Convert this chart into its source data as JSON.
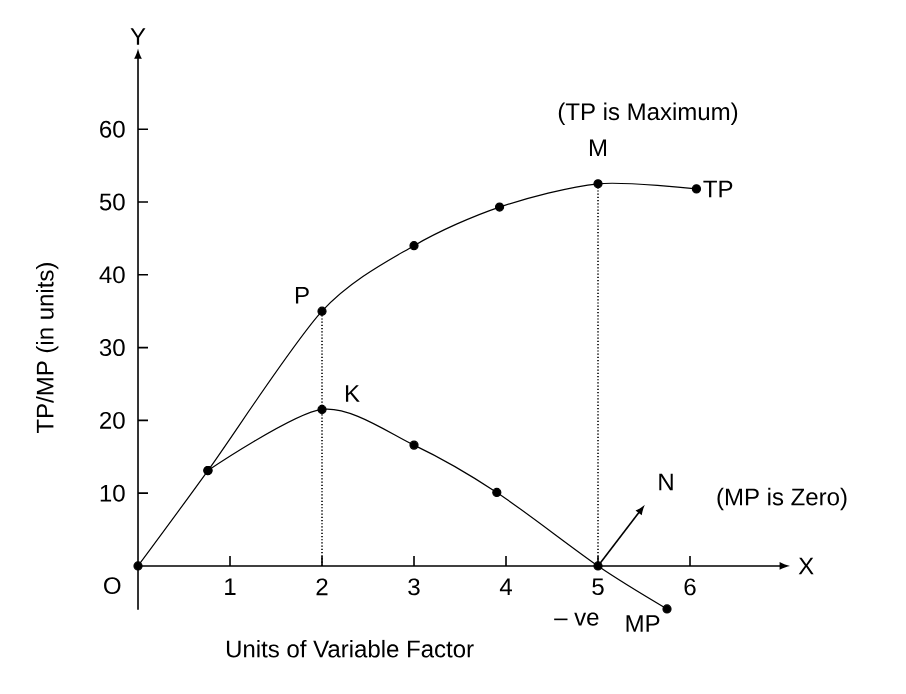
{
  "chart_data": {
    "type": "line",
    "xlabel": "Units of Variable Factor",
    "ylabel": "TP/MP (in units)",
    "xlim": [
      0,
      7
    ],
    "ylim": [
      -6,
      70
    ],
    "xticks": [
      1,
      2,
      3,
      4,
      5,
      6
    ],
    "yticks": [
      10,
      20,
      30,
      40,
      50,
      60
    ],
    "marker": "circle",
    "series": [
      {
        "name": "TP",
        "color": "#000000",
        "x": [
          0,
          0.76,
          2,
          3,
          3.93,
          5,
          6.07
        ],
        "values": [
          0,
          13.1,
          35,
          44,
          49.3,
          52.5,
          51.8
        ]
      },
      {
        "name": "MP",
        "color": "#000000",
        "x": [
          0.76,
          2,
          3,
          3.9,
          5,
          5.75
        ],
        "values": [
          13.1,
          21.5,
          16.6,
          10.1,
          0,
          -5.9
        ]
      },
      {
        "color": "#000000",
        "x": [
          2,
          2
        ],
        "values": [
          0,
          35
        ],
        "line_style": "dotted",
        "marker": "none"
      },
      {
        "color": "#000000",
        "x": [
          5,
          5
        ],
        "values": [
          0,
          52.5
        ],
        "line_style": "dotted",
        "marker": "none"
      }
    ],
    "annotations": [
      "P",
      "K",
      "M",
      "(TP is Maximum)",
      "N",
      "(MP is Zero)",
      "– ve",
      "O",
      "X",
      "Y"
    ]
  }
}
